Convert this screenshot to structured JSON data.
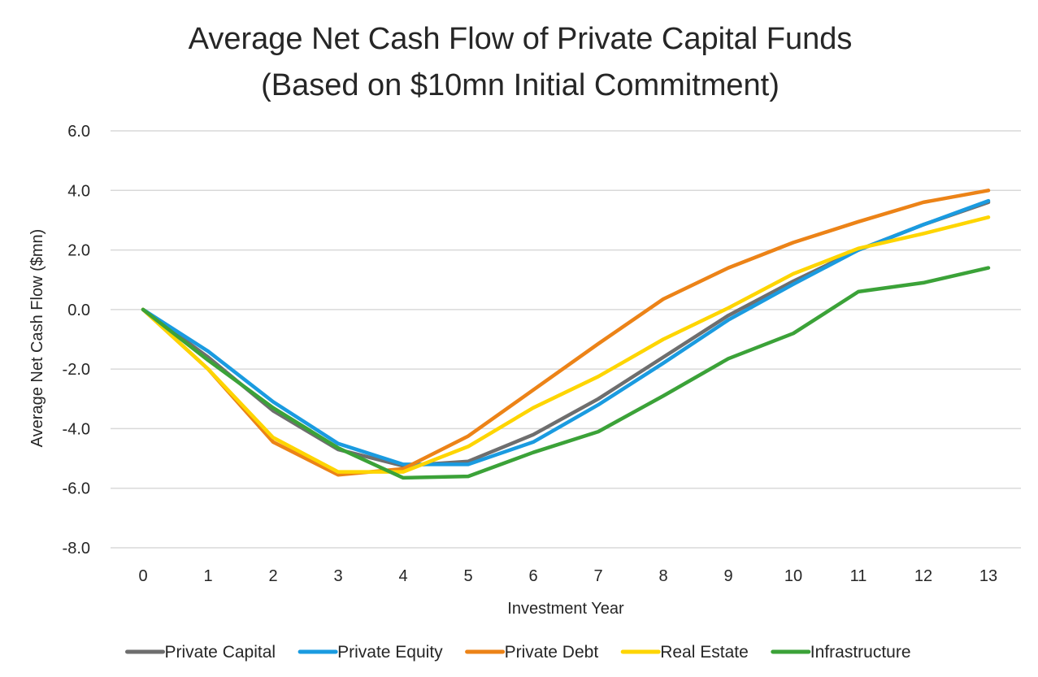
{
  "chart_data": {
    "type": "line",
    "title": "Average Net Cash Flow of Private Capital Funds",
    "subtitle": "(Based on $10mn Initial Commitment)",
    "xlabel": "Investment Year",
    "ylabel": "Average Net Cash Flow ($mn)",
    "x": [
      0,
      1,
      2,
      3,
      4,
      5,
      6,
      7,
      8,
      9,
      10,
      11,
      12,
      13
    ],
    "ylim": [
      -8,
      6
    ],
    "yticks": [
      "6.0",
      "4.0",
      "2.0",
      "0.0",
      "-2.0",
      "-4.0",
      "-6.0",
      "-8.0"
    ],
    "ytick_values": [
      6,
      4,
      2,
      0,
      -2,
      -4,
      -6,
      -8
    ],
    "grid": true,
    "legend_position": "bottom",
    "series": [
      {
        "name": "Private Capital",
        "color": "#6e6e6e",
        "values": [
          0,
          -1.6,
          -3.4,
          -4.7,
          -5.25,
          -5.1,
          -4.2,
          -3.0,
          -1.6,
          -0.2,
          0.95,
          2.0,
          2.85,
          3.6
        ]
      },
      {
        "name": "Private Equity",
        "color": "#1a9be0",
        "values": [
          0,
          -1.4,
          -3.1,
          -4.5,
          -5.2,
          -5.2,
          -4.45,
          -3.2,
          -1.8,
          -0.35,
          0.85,
          2.0,
          2.85,
          3.65
        ]
      },
      {
        "name": "Private Debt",
        "color": "#ec8317",
        "values": [
          0,
          -2.0,
          -4.45,
          -5.55,
          -5.35,
          -4.25,
          -2.7,
          -1.15,
          0.35,
          1.4,
          2.25,
          2.95,
          3.6,
          4.0
        ]
      },
      {
        "name": "Real Estate",
        "color": "#fed500",
        "values": [
          0,
          -2.0,
          -4.3,
          -5.45,
          -5.45,
          -4.6,
          -3.3,
          -2.25,
          -1.0,
          0.05,
          1.2,
          2.05,
          2.55,
          3.1
        ]
      },
      {
        "name": "Infrastructure",
        "color": "#3ba238",
        "values": [
          0,
          -1.7,
          -3.3,
          -4.65,
          -5.65,
          -5.6,
          -4.8,
          -4.1,
          -2.9,
          -1.65,
          -0.8,
          0.6,
          0.9,
          1.4
        ]
      }
    ]
  }
}
